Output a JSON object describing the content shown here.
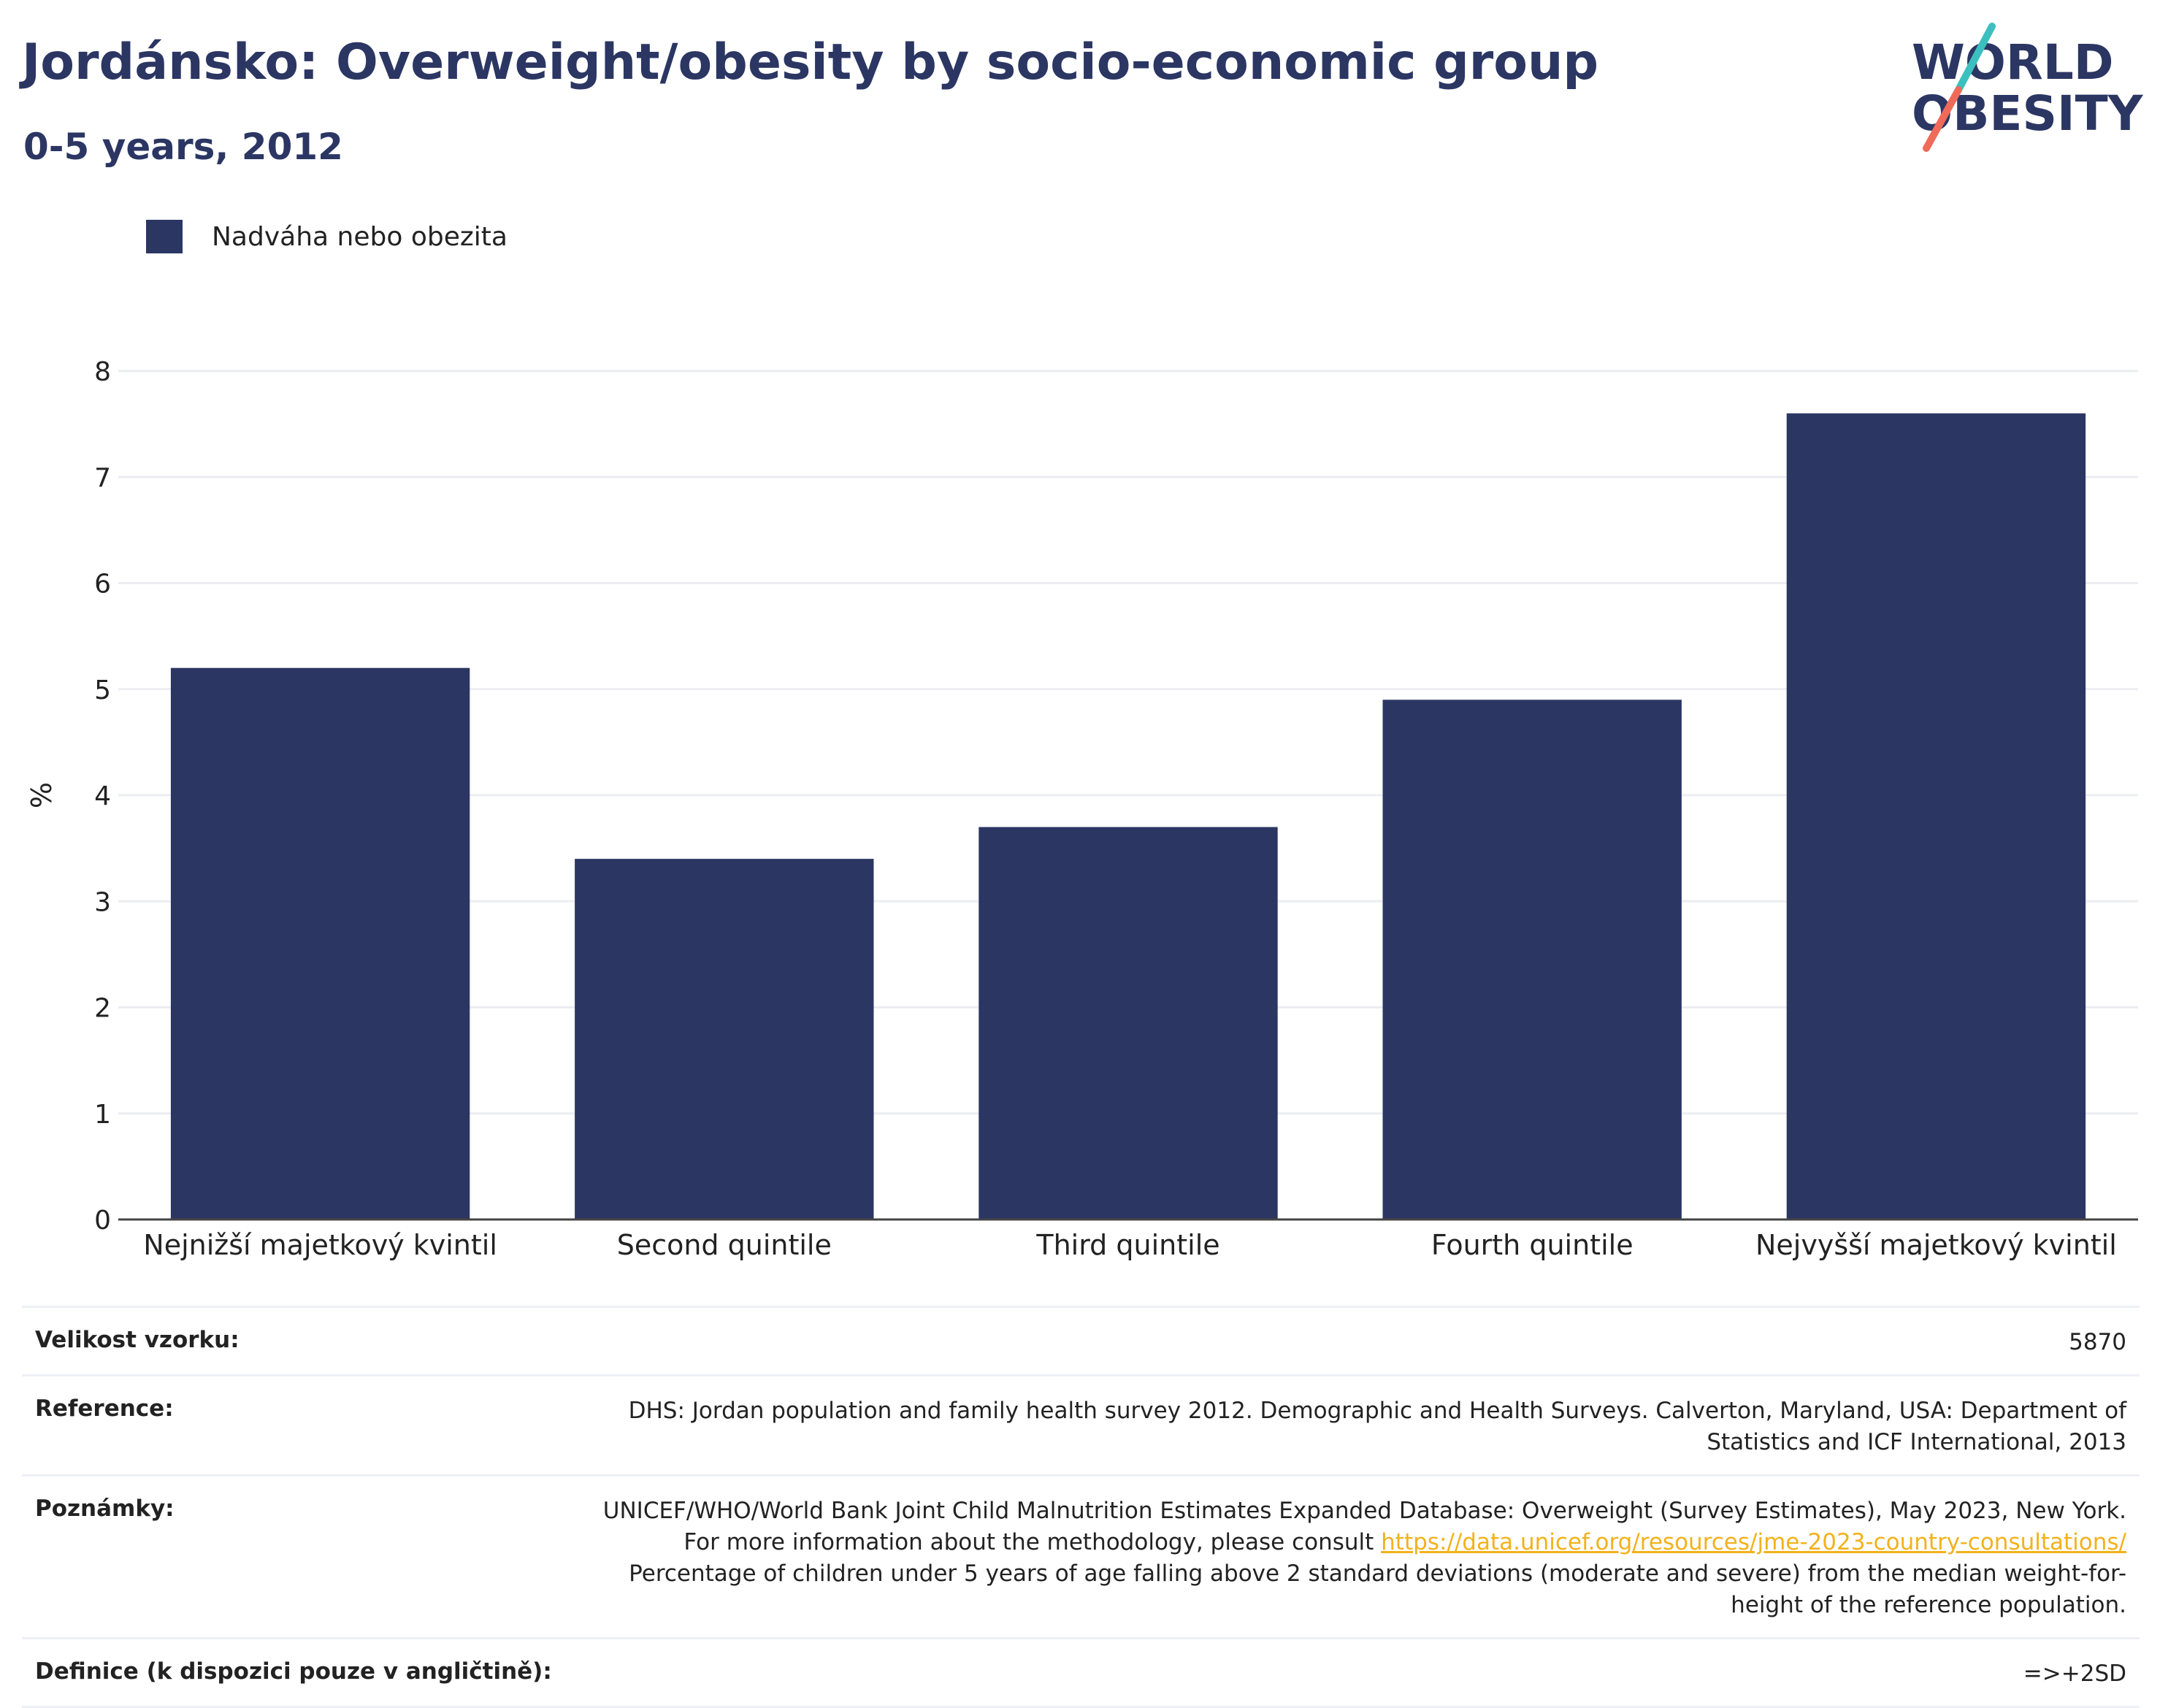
{
  "header": {
    "title": "Jordánsko: Overweight/obesity by socio-economic group",
    "subtitle": "0-5 years, 2012"
  },
  "logo": {
    "line1": "WORLD",
    "line2": "OBESITY",
    "colors": {
      "text": "#2b3663",
      "slash_top": "#3bbfbf",
      "slash_bottom": "#f06a5a"
    }
  },
  "legend": {
    "label": "Nadváha nebo obezita",
    "color": "#2b3663"
  },
  "chart_data": {
    "type": "bar",
    "categories": [
      "Nejnižší majetkový kvintil",
      "Second quintile",
      "Third quintile",
      "Fourth quintile",
      "Nejvyšší majetkový kvintil"
    ],
    "series": [
      {
        "name": "Nadváha nebo obezita",
        "values": [
          5.2,
          3.4,
          3.7,
          4.9,
          7.6
        ],
        "color": "#2b3663"
      }
    ],
    "ylabel": "%",
    "ylim": [
      0,
      8
    ],
    "yticks": [
      0,
      1,
      2,
      3,
      4,
      5,
      6,
      7,
      8
    ],
    "grid": true,
    "legend_position": "top-left"
  },
  "meta": {
    "sample_size": {
      "label": "Velikost vzorku:",
      "value": "5870"
    },
    "reference": {
      "label": "Reference:",
      "value": "DHS: Jordan population and family health survey 2012. Demographic and Health Surveys. Calverton, Maryland, USA: Department of Statistics and ICF International, 2013"
    },
    "notes": {
      "label": "Poznámky:",
      "text_before": "UNICEF/WHO/World Bank Joint Child Malnutrition Estimates Expanded Database: Overweight (Survey Estimates), May 2023, New York. For more information about the methodology, please consult ",
      "link": "https://data.unicef.org/resources/jme-2023-country-consultations/",
      "text_after": " Percentage of children under 5 years of age falling above 2 standard deviations (moderate and severe) from the median weight-for-height of the reference population."
    },
    "definition": {
      "label": "Definice (k dispozici pouze v angličtině):",
      "value": "=>+2SD"
    }
  }
}
